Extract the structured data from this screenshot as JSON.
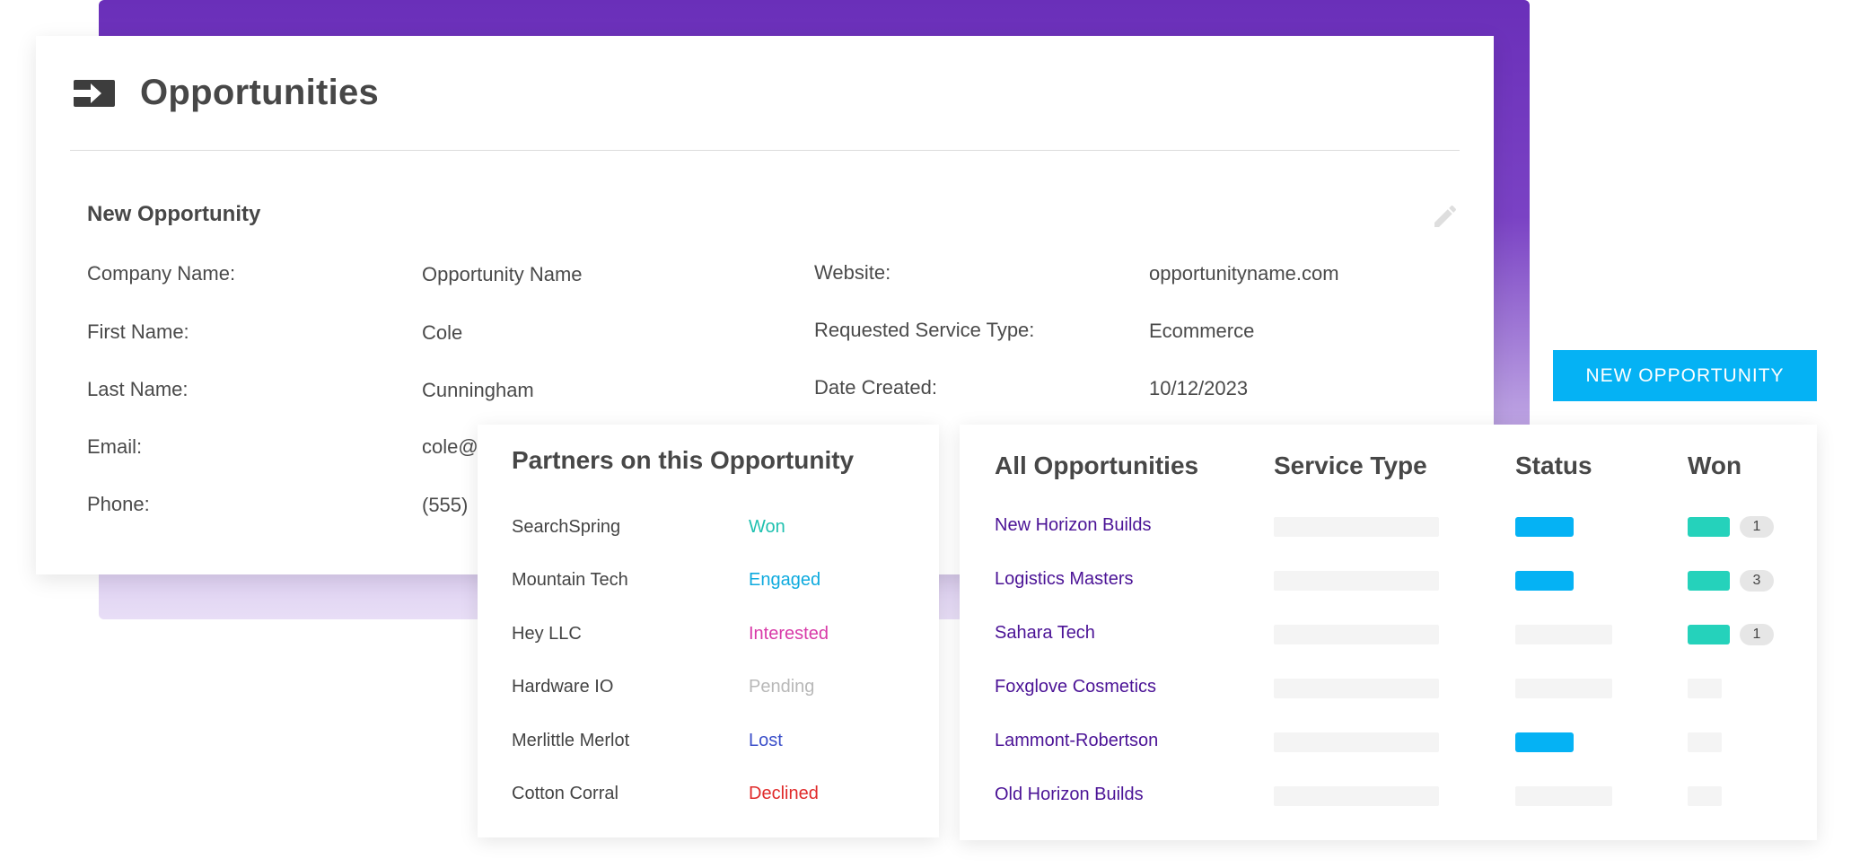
{
  "header": {
    "title": "Opportunities",
    "icon": "arrow-into-box-icon"
  },
  "opportunity": {
    "section_title": "New Opportunity",
    "fields": [
      {
        "label": "Company Name:",
        "value": "Opportunity Name"
      },
      {
        "label": "First Name:",
        "value": "Cole"
      },
      {
        "label": "Last Name:",
        "value": "Cunningham"
      },
      {
        "label": "Email:",
        "value": "cole@"
      },
      {
        "label": "Phone:",
        "value": "(555)"
      },
      {
        "label": "Website:",
        "value": "opportunityname.com"
      },
      {
        "label": "Requested Service Type:",
        "value": "Ecommerce"
      },
      {
        "label": "Date Created:",
        "value": "10/12/2023"
      }
    ]
  },
  "partners": {
    "title": "Partners on this Opportunity",
    "rows": [
      {
        "name": "SearchSpring",
        "status": "Won",
        "color": "#20c1b0"
      },
      {
        "name": "Mountain Tech",
        "status": "Engaged",
        "color": "#0eaade"
      },
      {
        "name": "Hey LLC",
        "status": "Interested",
        "color": "#d83aa8"
      },
      {
        "name": "Hardware IO",
        "status": "Pending",
        "color": "#b8b8b8"
      },
      {
        "name": "Merlittle Merlot",
        "status": "Lost",
        "color": "#3b4fc9"
      },
      {
        "name": "Cotton Corral",
        "status": "Declined",
        "color": "#e02a2a"
      }
    ]
  },
  "all_opportunities": {
    "headers": [
      "All Opportunities",
      "Service Type",
      "Status",
      "Won"
    ],
    "rows": [
      {
        "name": "New Horizon Builds",
        "status_bar": true,
        "won_bar": true,
        "won_count": "1"
      },
      {
        "name": "Logistics Masters",
        "status_bar": true,
        "won_bar": true,
        "won_count": "3"
      },
      {
        "name": "Sahara Tech",
        "status_bar": false,
        "won_bar": true,
        "won_count": "1"
      },
      {
        "name": "Foxglove Cosmetics",
        "status_bar": false,
        "won_bar": false,
        "won_count": ""
      },
      {
        "name": "Lammont-Robertson",
        "status_bar": true,
        "won_bar": false,
        "won_count": ""
      },
      {
        "name": "Old Horizon Builds",
        "status_bar": false,
        "won_bar": false,
        "won_count": ""
      }
    ]
  },
  "actions": {
    "new_opportunity": "NEW OPPORTUNITY"
  },
  "colors": {
    "brand_purple": "#6a2fb9",
    "accent_blue": "#05b2f4",
    "accent_teal": "#25d2bb",
    "link_purple": "#4b1396"
  }
}
